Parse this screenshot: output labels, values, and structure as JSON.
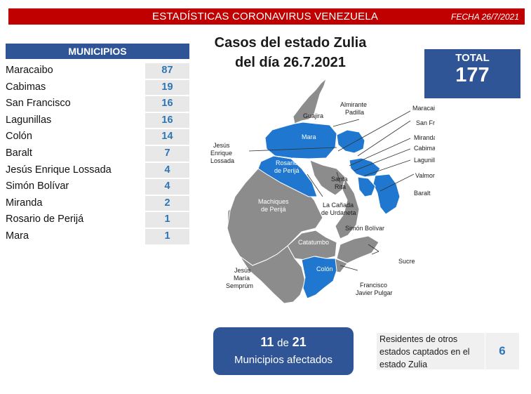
{
  "header": {
    "title": "ESTADÍSTICAS CORONAVIRUS VENEZUELA",
    "date": "FECHA 26/7/2021"
  },
  "colors": {
    "header_red": "#c00000",
    "accent_blue": "#2f5597",
    "value_blue": "#2e75b6",
    "affected": "#1f77d0",
    "unaffected": "#8c8c8c"
  },
  "chart_data": {
    "type": "table",
    "title": "Casos del estado Zulia del día 26.7.2021",
    "title_line1": "Casos del estado Zulia",
    "title_line2": "del día 26.7.2021",
    "column_header": "MUNICIPIOS",
    "rows": [
      {
        "municipio": "Maracaibo",
        "casos": "87"
      },
      {
        "municipio": "Cabimas",
        "casos": "19"
      },
      {
        "municipio": "San Francisco",
        "casos": "16"
      },
      {
        "municipio": "Lagunillas",
        "casos": "16"
      },
      {
        "municipio": "Colón",
        "casos": "14"
      },
      {
        "municipio": "Baralt",
        "casos": "7"
      },
      {
        "municipio": "Jesús Enrique Lossada",
        "casos": "4"
      },
      {
        "municipio": "Simón Bolívar",
        "casos": "4"
      },
      {
        "municipio": "Miranda",
        "casos": "2"
      },
      {
        "municipio": "Rosario de Perijá",
        "casos": "1"
      },
      {
        "municipio": "Mara",
        "casos": "1"
      }
    ]
  },
  "total": {
    "label": "TOTAL",
    "value": "177"
  },
  "map": {
    "labels": {
      "guajira": "Guajira",
      "almirante1": "Almirante",
      "almirante2": "Padilla",
      "mara": "Mara",
      "jesus_enrique1": "Jesús",
      "jesus_enrique2": "Enrique",
      "jesus_enrique3": "Lossada",
      "rosario1": "Rosario",
      "rosario2": "de Perijá",
      "machiques1": "Machiques",
      "machiques2": "de Perijá",
      "catatumbo": "Catatumbo",
      "colon": "Colón",
      "jesus_maria1": "Jesús",
      "jesus_maria2": "María",
      "jesus_maria3": "Semprúm",
      "maracaibo": "Maracaibo",
      "san_francisco": "San Francisco",
      "miranda": "Miranda",
      "cabimas": "Cabimas",
      "lagunillas": "Lagunillas",
      "valmore": "Valmore Rodríguez",
      "baralt": "Baralt",
      "santa_rita1": "Santa",
      "santa_rita2": "Rita",
      "canada1": "La Cañada",
      "canada2": "de Urdaneta",
      "simon_bolivar": "Simón Bolívar",
      "sucre": "Sucre",
      "pulgar1": "Francisco",
      "pulgar2": "Javier Pulgar"
    }
  },
  "affected": {
    "count": "11",
    "de": "de",
    "total": "21",
    "label": "Municipios afectados"
  },
  "residents": {
    "text": "Residentes de otros estados captados en el estado Zulia",
    "value": "6"
  }
}
